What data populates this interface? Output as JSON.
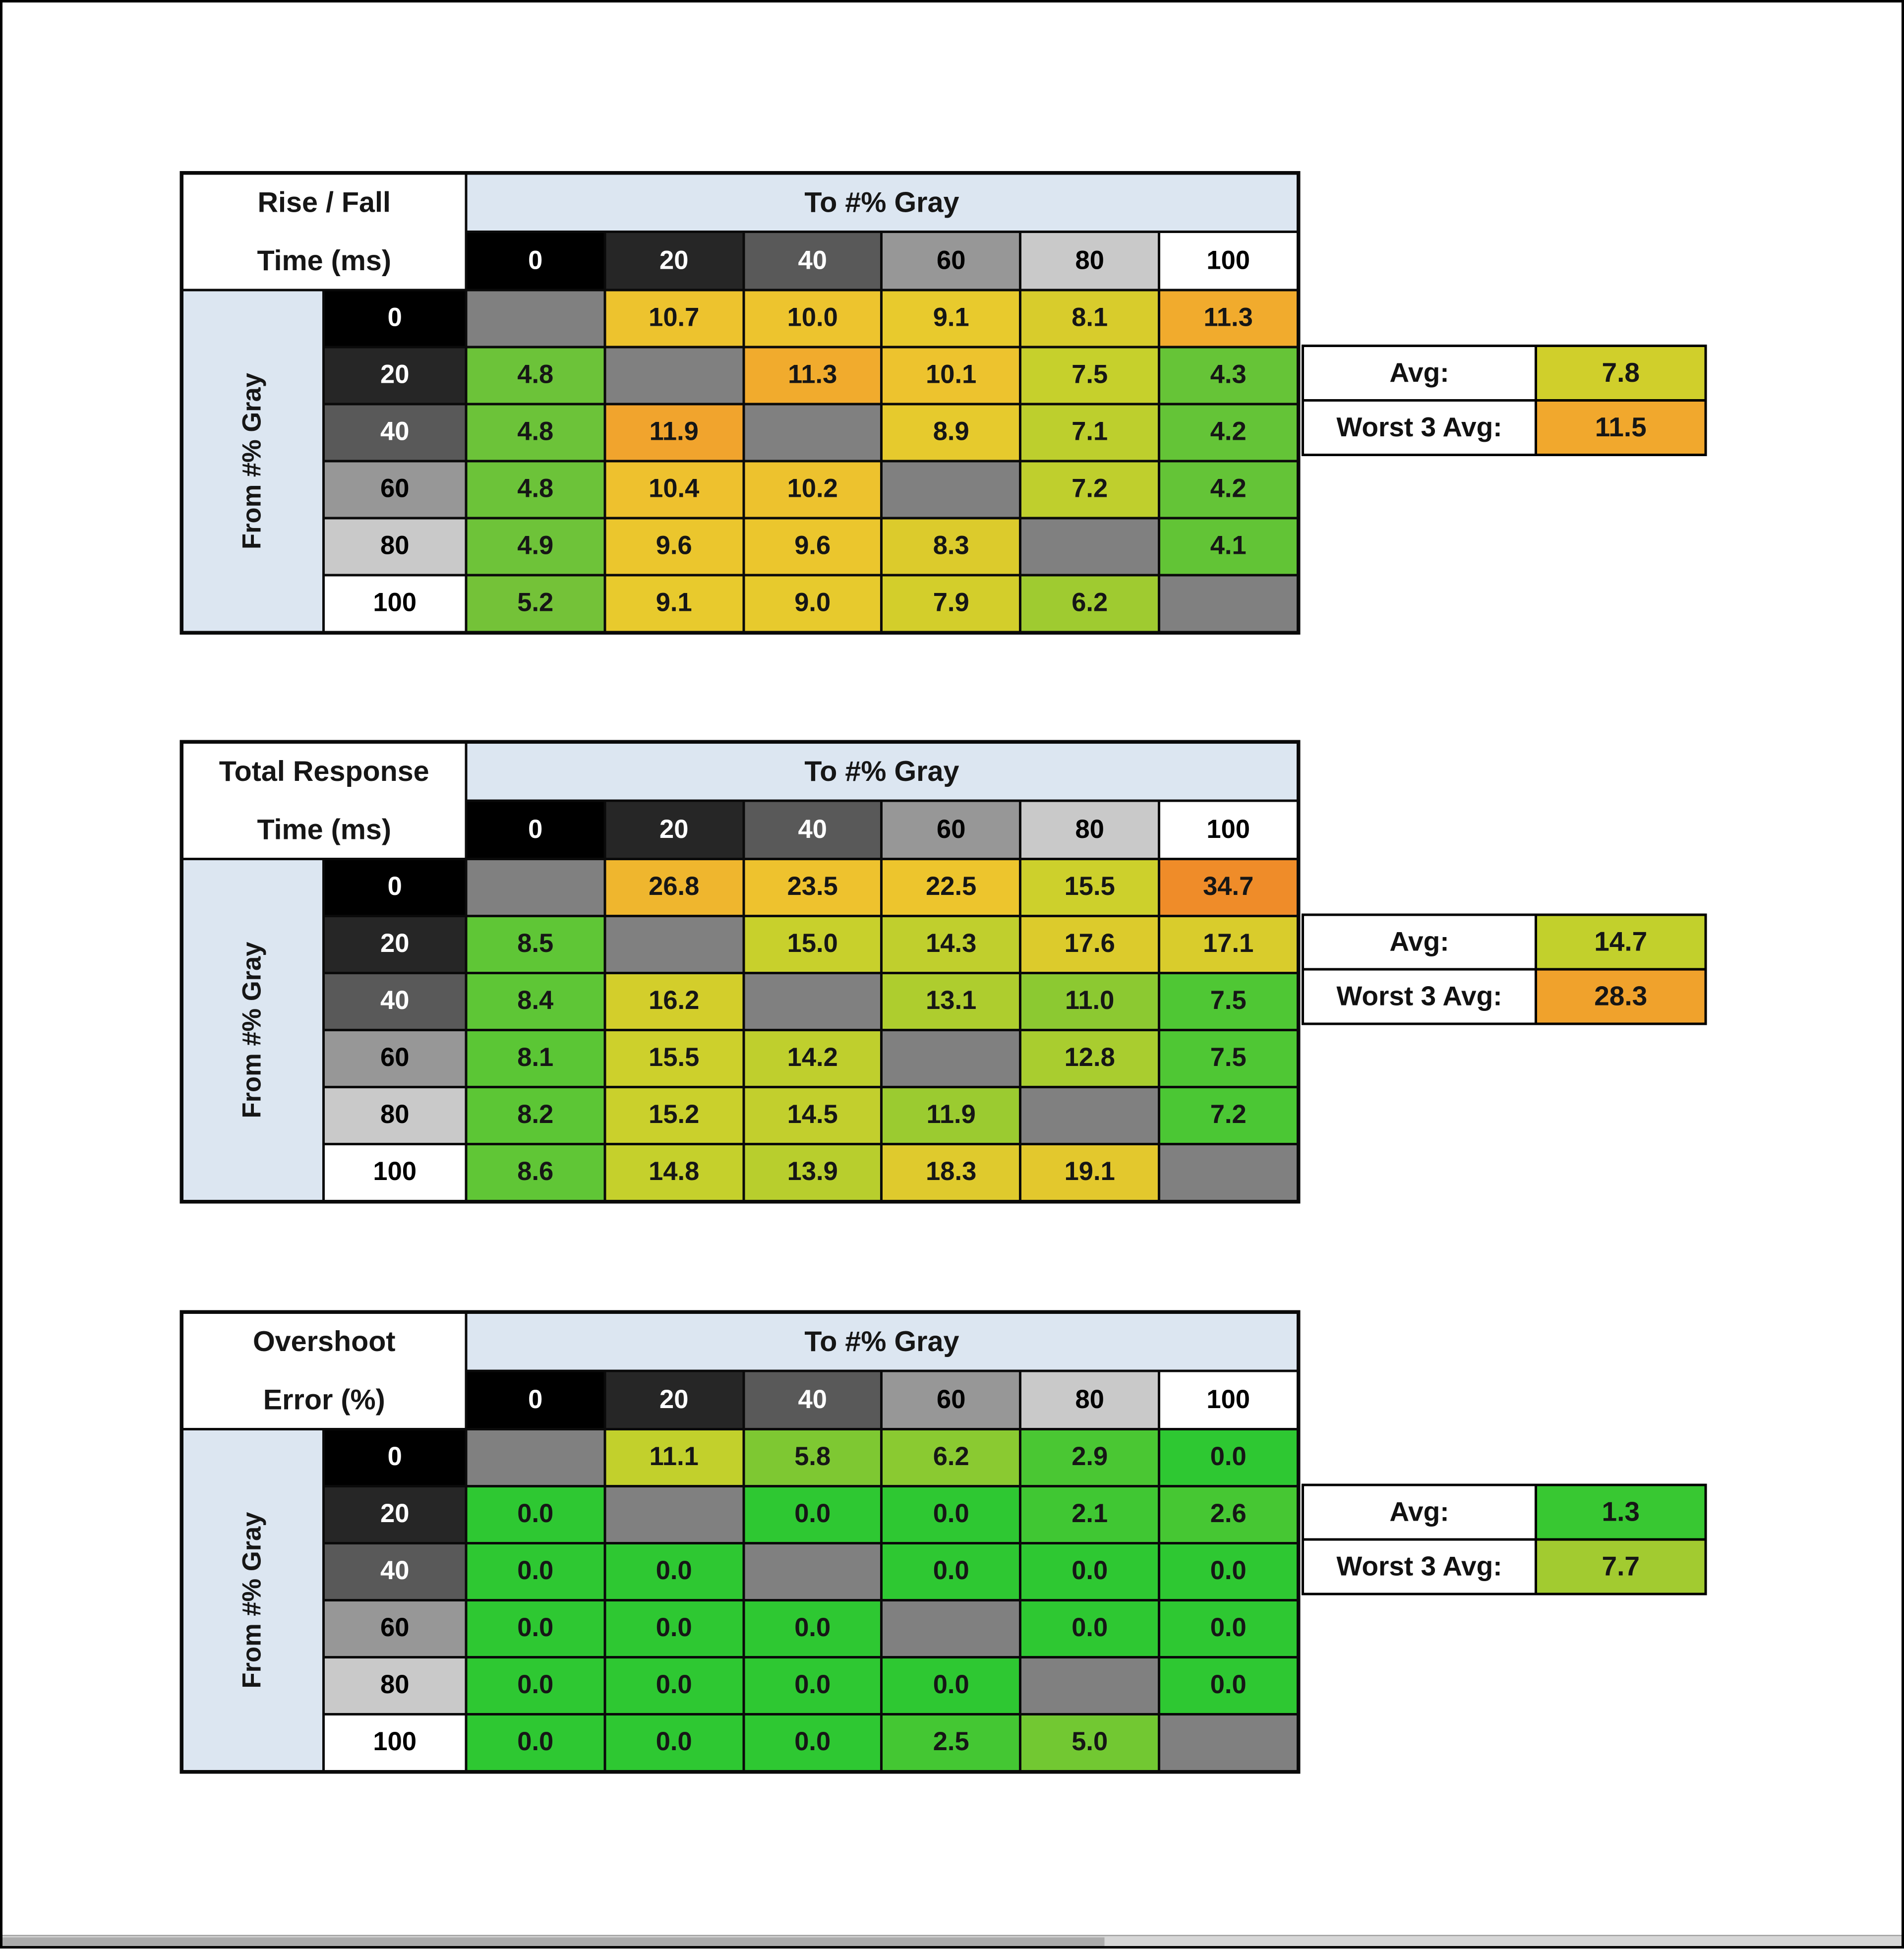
{
  "shared": {
    "diagonal_bg": "#808080",
    "band_bg": "#dce6f1",
    "level_colors": [
      {
        "bg": "#000000",
        "fg": "#ffffff"
      },
      {
        "bg": "#262626",
        "fg": "#ffffff"
      },
      {
        "bg": "#595959",
        "fg": "#ffffff"
      },
      {
        "bg": "#979797",
        "fg": "#000000"
      },
      {
        "bg": "#c9c9c9",
        "fg": "#000000"
      },
      {
        "bg": "#ffffff",
        "fg": "#000000"
      }
    ]
  },
  "chart_data": [
    {
      "type": "heatmap",
      "title_line1": "Rise / Fall",
      "title_line2": "Time (ms)",
      "x_header": "To #% Gray",
      "y_header": "From #% Gray",
      "levels": [
        "0",
        "20",
        "40",
        "60",
        "80",
        "100"
      ],
      "rows": [
        {
          "level": "0",
          "cells": [
            null,
            {
              "v": "10.7",
              "bg": "#edc32e"
            },
            {
              "v": "10.0",
              "bg": "#edc42e"
            },
            {
              "v": "9.1",
              "bg": "#e8ca2d"
            },
            {
              "v": "8.1",
              "bg": "#d8cc2c"
            },
            {
              "v": "11.3",
              "bg": "#f1ab2d"
            }
          ]
        },
        {
          "level": "20",
          "cells": [
            {
              "v": "4.8",
              "bg": "#6cc339"
            },
            null,
            {
              "v": "11.3",
              "bg": "#f1ab2d"
            },
            {
              "v": "10.1",
              "bg": "#edc32e"
            },
            {
              "v": "7.5",
              "bg": "#c6d02c"
            },
            {
              "v": "4.3",
              "bg": "#66c437"
            }
          ]
        },
        {
          "level": "40",
          "cells": [
            {
              "v": "4.8",
              "bg": "#6cc339"
            },
            {
              "v": "11.9",
              "bg": "#f1a42d"
            },
            null,
            {
              "v": "8.9",
              "bg": "#e6ca2d"
            },
            {
              "v": "7.1",
              "bg": "#bdcf2d"
            },
            {
              "v": "4.2",
              "bg": "#64c437"
            }
          ]
        },
        {
          "level": "60",
          "cells": [
            {
              "v": "4.8",
              "bg": "#6cc339"
            },
            {
              "v": "10.4",
              "bg": "#eec12e"
            },
            {
              "v": "10.2",
              "bg": "#edc22e"
            },
            null,
            {
              "v": "7.2",
              "bg": "#bfcf2d"
            },
            {
              "v": "4.2",
              "bg": "#64c437"
            }
          ]
        },
        {
          "level": "80",
          "cells": [
            {
              "v": "4.9",
              "bg": "#6ec339"
            },
            {
              "v": "9.6",
              "bg": "#ebc62d"
            },
            {
              "v": "9.6",
              "bg": "#ebc62d"
            },
            {
              "v": "8.3",
              "bg": "#dccb2c"
            },
            null,
            {
              "v": "4.1",
              "bg": "#62c436"
            }
          ]
        },
        {
          "level": "100",
          "cells": [
            {
              "v": "5.2",
              "bg": "#74c238"
            },
            {
              "v": "9.1",
              "bg": "#e8ca2d"
            },
            {
              "v": "9.0",
              "bg": "#e7ca2d"
            },
            {
              "v": "7.9",
              "bg": "#d3ce2b"
            },
            {
              "v": "6.2",
              "bg": "#9fcb30"
            },
            null
          ]
        }
      ],
      "summary": {
        "avg_label": "Avg:",
        "avg_value": "7.8",
        "avg_bg": "#d0cf2b",
        "worst_label": "Worst 3 Avg:",
        "worst_value": "11.5",
        "worst_bg": "#f1a82d"
      }
    },
    {
      "type": "heatmap",
      "title_line1": "Total Response",
      "title_line2": "Time (ms)",
      "x_header": "To #% Gray",
      "y_header": "From #% Gray",
      "levels": [
        "0",
        "20",
        "40",
        "60",
        "80",
        "100"
      ],
      "rows": [
        {
          "level": "0",
          "cells": [
            null,
            {
              "v": "26.8",
              "bg": "#efb62e"
            },
            {
              "v": "23.5",
              "bg": "#eec22e"
            },
            {
              "v": "22.5",
              "bg": "#edc52d"
            },
            {
              "v": "15.5",
              "bg": "#cdd02c"
            },
            {
              "v": "34.7",
              "bg": "#ef8c29"
            }
          ]
        },
        {
          "level": "20",
          "cells": [
            {
              "v": "8.5",
              "bg": "#5fc636"
            },
            null,
            {
              "v": "15.0",
              "bg": "#c8d02c"
            },
            {
              "v": "14.3",
              "bg": "#c0cf2d"
            },
            {
              "v": "17.6",
              "bg": "#dccb2c"
            },
            {
              "v": "17.1",
              "bg": "#d9cc2c"
            }
          ]
        },
        {
          "level": "40",
          "cells": [
            {
              "v": "8.4",
              "bg": "#5ec636"
            },
            {
              "v": "16.2",
              "bg": "#d3ce2b"
            },
            null,
            {
              "v": "13.1",
              "bg": "#aecd2e"
            },
            {
              "v": "11.0",
              "bg": "#8cc931"
            },
            {
              "v": "7.5",
              "bg": "#4fc734"
            }
          ]
        },
        {
          "level": "60",
          "cells": [
            {
              "v": "8.1",
              "bg": "#5bc635"
            },
            {
              "v": "15.5",
              "bg": "#cdd02c"
            },
            {
              "v": "14.2",
              "bg": "#bfcf2d"
            },
            null,
            {
              "v": "12.8",
              "bg": "#a9cd2f"
            },
            {
              "v": "7.5",
              "bg": "#4fc734"
            }
          ]
        },
        {
          "level": "80",
          "cells": [
            {
              "v": "8.2",
              "bg": "#5cc635"
            },
            {
              "v": "15.2",
              "bg": "#cad02c"
            },
            {
              "v": "14.5",
              "bg": "#c2cf2d"
            },
            {
              "v": "11.9",
              "bg": "#9bcb30"
            },
            null,
            {
              "v": "7.2",
              "bg": "#4bc734"
            }
          ]
        },
        {
          "level": "100",
          "cells": [
            {
              "v": "8.6",
              "bg": "#60c636"
            },
            {
              "v": "14.8",
              "bg": "#c5d02c"
            },
            {
              "v": "13.9",
              "bg": "#b8ce2d"
            },
            {
              "v": "18.3",
              "bg": "#dfca2d"
            },
            {
              "v": "19.1",
              "bg": "#e3c82d"
            },
            null
          ]
        }
      ],
      "summary": {
        "avg_label": "Avg:",
        "avg_value": "14.7",
        "avg_bg": "#c2d02c",
        "worst_label": "Worst 3 Avg:",
        "worst_value": "28.3",
        "worst_bg": "#f0a22c"
      }
    },
    {
      "type": "heatmap",
      "title_line1": "Overshoot",
      "title_line2": "Error (%)",
      "x_header": "To #% Gray",
      "y_header": "From #% Gray",
      "levels": [
        "0",
        "20",
        "40",
        "60",
        "80",
        "100"
      ],
      "rows": [
        {
          "level": "0",
          "cells": [
            null,
            {
              "v": "11.1",
              "bg": "#c2d02c"
            },
            {
              "v": "5.8",
              "bg": "#7ec832"
            },
            {
              "v": "6.2",
              "bg": "#8aca31"
            },
            {
              "v": "2.9",
              "bg": "#4ac733"
            },
            {
              "v": "0.0",
              "bg": "#2ec832"
            }
          ]
        },
        {
          "level": "20",
          "cells": [
            {
              "v": "0.0",
              "bg": "#2ec832"
            },
            null,
            {
              "v": "0.0",
              "bg": "#2ec832"
            },
            {
              "v": "0.0",
              "bg": "#2ec832"
            },
            {
              "v": "2.1",
              "bg": "#40c733"
            },
            {
              "v": "2.6",
              "bg": "#46c733"
            }
          ]
        },
        {
          "level": "40",
          "cells": [
            {
              "v": "0.0",
              "bg": "#2ec832"
            },
            {
              "v": "0.0",
              "bg": "#2ec832"
            },
            null,
            {
              "v": "0.0",
              "bg": "#2ec832"
            },
            {
              "v": "0.0",
              "bg": "#2ec832"
            },
            {
              "v": "0.0",
              "bg": "#2ec832"
            }
          ]
        },
        {
          "level": "60",
          "cells": [
            {
              "v": "0.0",
              "bg": "#2ec832"
            },
            {
              "v": "0.0",
              "bg": "#2ec832"
            },
            {
              "v": "0.0",
              "bg": "#2ec832"
            },
            null,
            {
              "v": "0.0",
              "bg": "#2ec832"
            },
            {
              "v": "0.0",
              "bg": "#2ec832"
            }
          ]
        },
        {
          "level": "80",
          "cells": [
            {
              "v": "0.0",
              "bg": "#2ec832"
            },
            {
              "v": "0.0",
              "bg": "#2ec832"
            },
            {
              "v": "0.0",
              "bg": "#2ec832"
            },
            {
              "v": "0.0",
              "bg": "#2ec832"
            },
            null,
            {
              "v": "0.0",
              "bg": "#2ec832"
            }
          ]
        },
        {
          "level": "100",
          "cells": [
            {
              "v": "0.0",
              "bg": "#2ec832"
            },
            {
              "v": "0.0",
              "bg": "#2ec832"
            },
            {
              "v": "0.0",
              "bg": "#2ec832"
            },
            {
              "v": "2.5",
              "bg": "#44c733"
            },
            {
              "v": "5.0",
              "bg": "#72c832"
            },
            null
          ]
        }
      ],
      "summary": {
        "avg_label": "Avg:",
        "avg_value": "1.3",
        "avg_bg": "#38c832",
        "worst_label": "Worst 3 Avg:",
        "worst_value": "7.7",
        "worst_bg": "#a2cb30"
      }
    }
  ]
}
